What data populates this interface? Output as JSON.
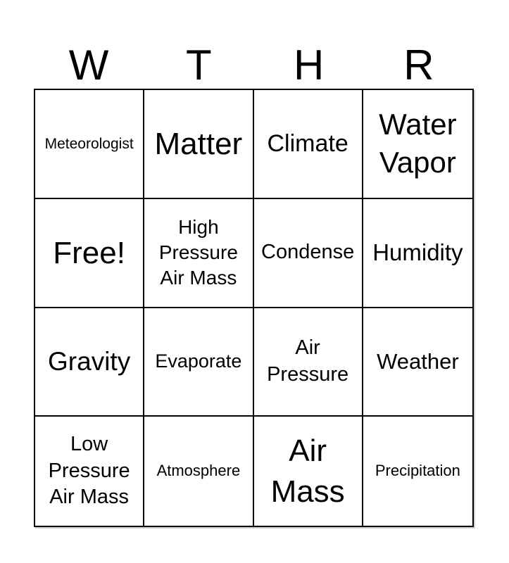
{
  "header": {
    "letters": [
      "W",
      "T",
      "H",
      "R"
    ]
  },
  "grid": {
    "cells": [
      {
        "text": "Meteorologist"
      },
      {
        "text": "Matter"
      },
      {
        "text": "Climate"
      },
      {
        "text": "Water Vapor"
      },
      {
        "text": "Free!"
      },
      {
        "text": "High Pressure Air Mass"
      },
      {
        "text": "Condense"
      },
      {
        "text": "Humidity"
      },
      {
        "text": "Gravity"
      },
      {
        "text": "Evaporate"
      },
      {
        "text": "Air Pressure"
      },
      {
        "text": "Weather"
      },
      {
        "text": "Low Pressure Air Mass"
      },
      {
        "text": "Atmosphere"
      },
      {
        "text": "Air Mass"
      },
      {
        "text": "Precipitation"
      }
    ]
  },
  "colors": {
    "text": "#000000",
    "border": "#000000",
    "background": "#ffffff"
  }
}
